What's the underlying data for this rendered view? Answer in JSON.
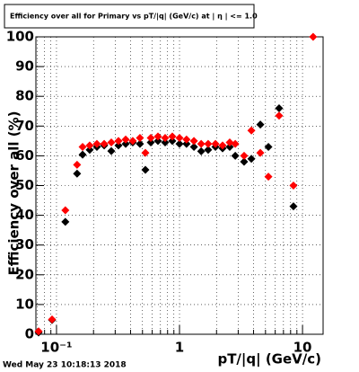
{
  "chart_data": {
    "type": "scatter",
    "title": "Efficiency over all for Primary vs pT/|q| (GeV/c) at | η | <= 1.0",
    "x_label": "pT/|q| (GeV/c)",
    "y_label": "Efficiency over all (%)",
    "timestamp": "Wed May 23 10:18:13 2018",
    "x_scale": "log",
    "grid": true,
    "xlim": [
      0.068,
      14.7
    ],
    "ylim": [
      0,
      100
    ],
    "xticks": [
      {
        "value": 0.1,
        "label": "10⁻¹"
      },
      1,
      10
    ],
    "x_minor_ticks": [
      0.07,
      0.08,
      0.09,
      0.2,
      0.3,
      0.4,
      0.5,
      0.6,
      0.7,
      0.8,
      0.9,
      2,
      3,
      4,
      5,
      6,
      7,
      8,
      9
    ],
    "yticks": [
      0,
      10,
      20,
      30,
      40,
      50,
      60,
      70,
      80,
      90,
      100
    ],
    "x": [
      0.0715,
      0.092,
      0.118,
      0.147,
      0.163,
      0.186,
      0.213,
      0.244,
      0.279,
      0.319,
      0.365,
      0.417,
      0.477,
      0.528,
      0.584,
      0.668,
      0.764,
      0.874,
      1.0,
      1.14,
      1.31,
      1.5,
      1.71,
      1.96,
      2.24,
      2.56,
      2.84,
      3.35,
      3.84,
      4.54,
      5.28,
      6.45,
      8.44,
      12.2
    ],
    "series": [
      {
        "color": "#000000",
        "values": [
          0.6,
          4.8,
          37.8,
          54,
          60.4,
          62,
          63,
          63.5,
          61.6,
          63.5,
          64,
          64.5,
          64,
          55.3,
          64.5,
          65,
          64.5,
          65,
          64,
          64,
          63,
          61.5,
          62,
          63,
          62.5,
          63,
          60,
          58,
          59,
          70.5,
          63,
          76,
          43,
          null
        ]
      },
      {
        "color": "#ff0000",
        "values": [
          1,
          5,
          41.7,
          57,
          63,
          63.5,
          64,
          64,
          64.5,
          65,
          65.5,
          65,
          66,
          61,
          66,
          66.5,
          66,
          66.5,
          66,
          65.5,
          65,
          64,
          64,
          64,
          63.5,
          64.5,
          64,
          60,
          68.5,
          61,
          53,
          73.5,
          50,
          100
        ]
      }
    ]
  }
}
